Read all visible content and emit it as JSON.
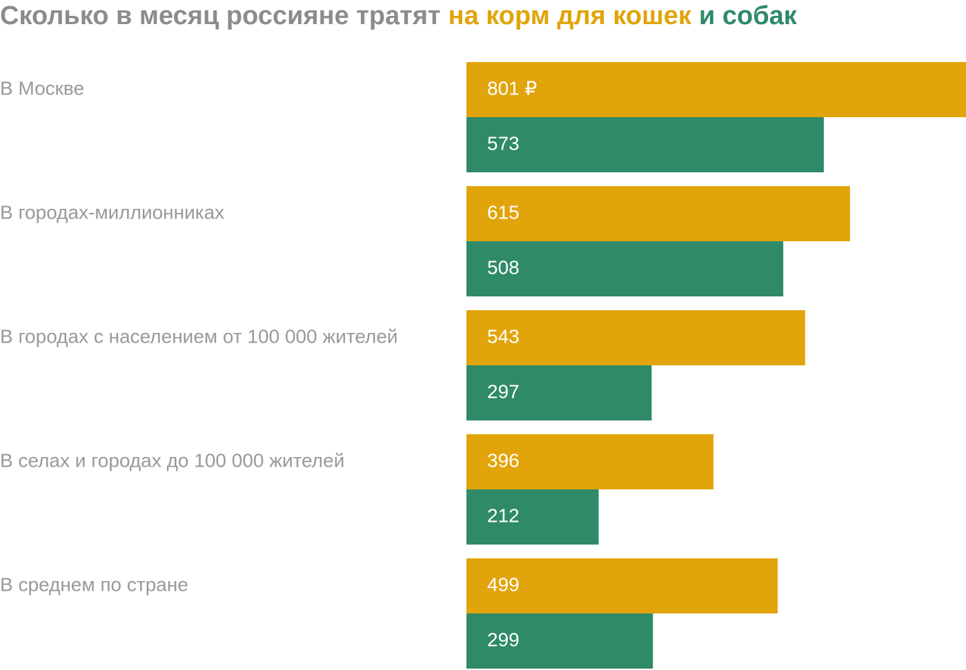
{
  "chart_data": {
    "type": "bar",
    "orientation": "horizontal",
    "title": "Сколько в месяц россияне тратят",
    "categories": [
      "В Москве",
      "В городах-миллионниках",
      "В городах с населением от 100 000 жителей",
      "В селах и городах до 100 000 жителей",
      "В среднем по стране"
    ],
    "series": [
      {
        "name": "на корм для кошек",
        "color": "#e1a40b",
        "values": [
          801,
          615,
          543,
          396,
          499
        ],
        "value_labels": [
          "801 ₽",
          "615",
          "543",
          "396",
          "499"
        ]
      },
      {
        "name": "и собак",
        "color": "#2f8a68",
        "values": [
          573,
          508,
          297,
          212,
          299
        ]
      }
    ]
  }
}
